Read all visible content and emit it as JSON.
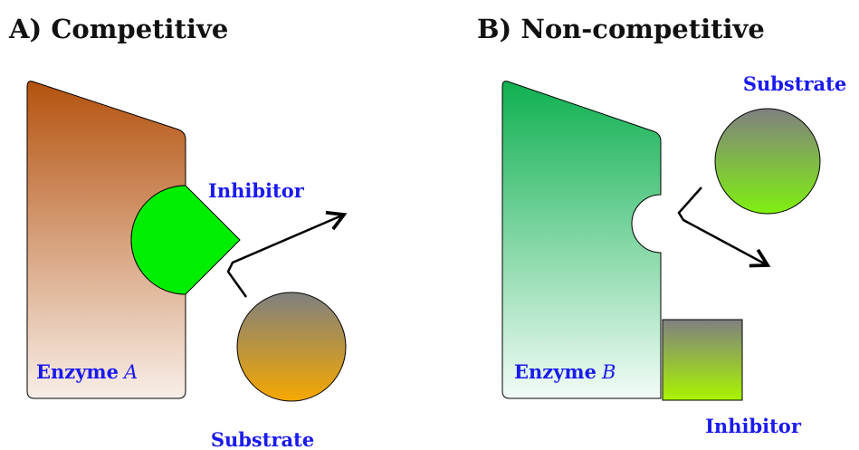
{
  "panels": [
    {
      "title": "A) Competitive",
      "enzyme_label": "Enzyme",
      "enzyme_variable": "A",
      "inhibitor_label": "Inhibitor",
      "substrate_label": "Substrate"
    },
    {
      "title": "B) Non-competitive",
      "enzyme_label": "Enzyme",
      "enzyme_variable": "B",
      "inhibitor_label": "Inhibitor",
      "substrate_label": "Substrate"
    }
  ]
}
